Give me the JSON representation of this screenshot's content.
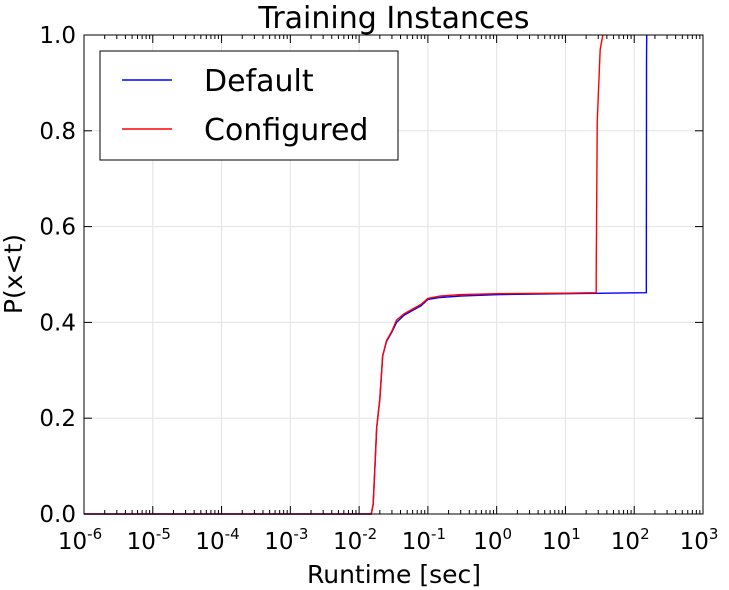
{
  "chart_data": {
    "type": "line",
    "title": "Training Instances",
    "xlabel": "Runtime [sec]",
    "ylabel": "P(x<t)",
    "xscale": "log",
    "xlim": [
      1e-06,
      1000
    ],
    "ylim": [
      0.0,
      1.0
    ],
    "grid": true,
    "legend_position": "top-left",
    "x_ticks": [
      {
        "base": "10",
        "exp": "-6",
        "value": 1e-06
      },
      {
        "base": "10",
        "exp": "-5",
        "value": 1e-05
      },
      {
        "base": "10",
        "exp": "-4",
        "value": 0.0001
      },
      {
        "base": "10",
        "exp": "-3",
        "value": 0.001
      },
      {
        "base": "10",
        "exp": "-2",
        "value": 0.01
      },
      {
        "base": "10",
        "exp": "-1",
        "value": 0.1
      },
      {
        "base": "10",
        "exp": "0",
        "value": 1
      },
      {
        "base": "10",
        "exp": "1",
        "value": 10
      },
      {
        "base": "10",
        "exp": "2",
        "value": 100
      },
      {
        "base": "10",
        "exp": "3",
        "value": 1000
      }
    ],
    "y_ticks": [
      {
        "label": "0.0",
        "value": 0.0
      },
      {
        "label": "0.2",
        "value": 0.2
      },
      {
        "label": "0.4",
        "value": 0.4
      },
      {
        "label": "0.6",
        "value": 0.6
      },
      {
        "label": "0.8",
        "value": 0.8
      },
      {
        "label": "1.0",
        "value": 1.0
      }
    ],
    "series": [
      {
        "name": "Default",
        "color": "#0000ff",
        "points": [
          [
            1e-06,
            0.0
          ],
          [
            0.015,
            0.0
          ],
          [
            0.016,
            0.02
          ],
          [
            0.017,
            0.1
          ],
          [
            0.018,
            0.18
          ],
          [
            0.02,
            0.24
          ],
          [
            0.022,
            0.33
          ],
          [
            0.025,
            0.36
          ],
          [
            0.03,
            0.38
          ],
          [
            0.035,
            0.4
          ],
          [
            0.045,
            0.415
          ],
          [
            0.06,
            0.425
          ],
          [
            0.08,
            0.435
          ],
          [
            0.1,
            0.448
          ],
          [
            0.15,
            0.452
          ],
          [
            0.3,
            0.455
          ],
          [
            1,
            0.458
          ],
          [
            10,
            0.46
          ],
          [
            150,
            0.462
          ],
          [
            150,
            0.5
          ],
          [
            151,
            0.95
          ],
          [
            152,
            1.0
          ]
        ]
      },
      {
        "name": "Configured",
        "color": "#ff0000",
        "points": [
          [
            1e-06,
            0.0
          ],
          [
            0.015,
            0.0
          ],
          [
            0.016,
            0.02
          ],
          [
            0.017,
            0.1
          ],
          [
            0.018,
            0.18
          ],
          [
            0.02,
            0.24
          ],
          [
            0.022,
            0.33
          ],
          [
            0.025,
            0.362
          ],
          [
            0.03,
            0.382
          ],
          [
            0.035,
            0.405
          ],
          [
            0.045,
            0.418
          ],
          [
            0.06,
            0.428
          ],
          [
            0.08,
            0.438
          ],
          [
            0.1,
            0.45
          ],
          [
            0.15,
            0.455
          ],
          [
            0.3,
            0.458
          ],
          [
            1,
            0.46
          ],
          [
            10,
            0.461
          ],
          [
            28,
            0.462
          ],
          [
            28,
            0.5
          ],
          [
            29,
            0.82
          ],
          [
            32,
            0.97
          ],
          [
            35,
            1.0
          ]
        ]
      }
    ]
  }
}
